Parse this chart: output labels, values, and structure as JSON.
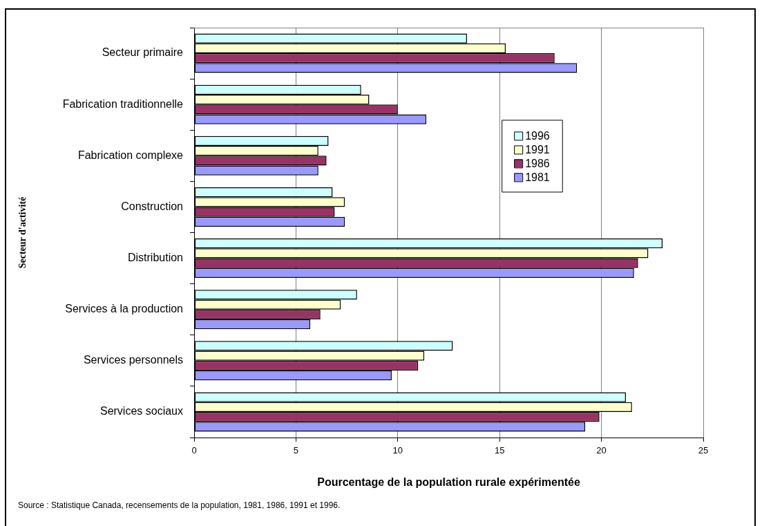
{
  "chart_data": {
    "type": "bar",
    "orientation": "horizontal",
    "categories": [
      "Secteur primaire",
      "Fabrication traditionnelle",
      "Fabrication complexe",
      "Construction",
      "Distribution",
      "Services à la production",
      "Services personnels",
      "Services sociaux"
    ],
    "series": [
      {
        "name": "1996",
        "color": "#ccffff",
        "values": [
          13.4,
          8.2,
          6.6,
          6.8,
          23.0,
          8.0,
          12.7,
          21.2
        ]
      },
      {
        "name": "1991",
        "color": "#ffffcc",
        "values": [
          15.3,
          8.6,
          6.1,
          7.4,
          22.3,
          7.2,
          11.3,
          21.5
        ]
      },
      {
        "name": "1986",
        "color": "#993366",
        "values": [
          17.7,
          10.0,
          6.5,
          6.9,
          21.8,
          6.2,
          11.0,
          19.9
        ]
      },
      {
        "name": "1981",
        "color": "#9999ff",
        "values": [
          18.8,
          11.4,
          6.1,
          7.4,
          21.6,
          5.7,
          9.7,
          19.2
        ]
      }
    ],
    "xlabel": "Pourcentage de la population rurale expérimentée",
    "ylabel": "Secteur d'activité",
    "xlim": [
      0,
      25
    ],
    "xticks": [
      0,
      5,
      10,
      15,
      20,
      25
    ],
    "grid": "x",
    "legend": "right",
    "annotations": [
      "Source : Statistique Canada, recensements de la population, 1981, 1986, 1991 et 1996."
    ]
  }
}
